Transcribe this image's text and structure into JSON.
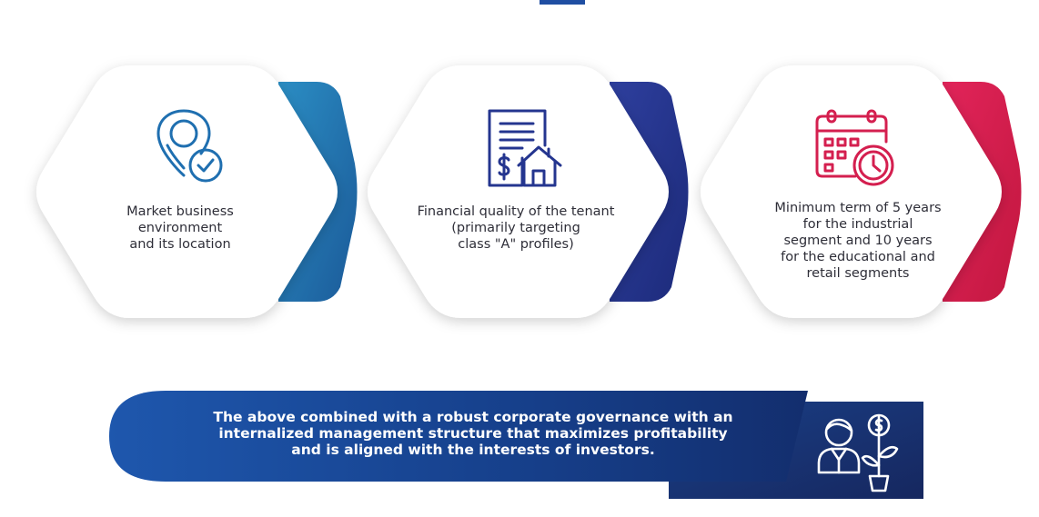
{
  "colors": {
    "card1_accent": "#1c6ea8",
    "card2_accent": "#24358f",
    "card3_accent": "#d41f4f",
    "banner": "#1a4c9c",
    "text": "#2e2e38"
  },
  "cards": [
    {
      "icon": "location-check-icon",
      "lines": [
        "Market business",
        "environment",
        "and its location"
      ]
    },
    {
      "icon": "document-house-icon",
      "lines": [
        "Financial quality of the tenant",
        "(primarily targeting",
        "class \"A\" profiles)"
      ]
    },
    {
      "icon": "calendar-clock-icon",
      "lines": [
        "Minimum term of 5 years",
        "for the industrial",
        "segment and 10 years",
        "for the educational and",
        "retail segments"
      ]
    }
  ],
  "banner": {
    "icon": "investor-growth-icon",
    "lines": [
      "The above combined with a robust corporate governance with an",
      "internalized management structure that maximizes profitability",
      "and is aligned with the interests of investors."
    ]
  }
}
